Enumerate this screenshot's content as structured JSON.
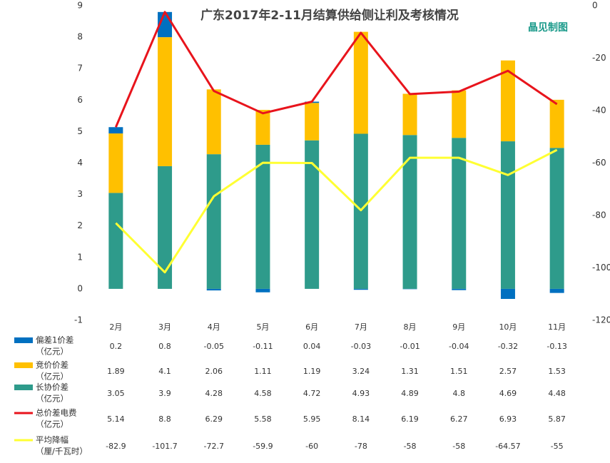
{
  "chart_data": {
    "type": "bar-line",
    "title": "广东2017年2-11月结算供给侧让利及考核情况",
    "annotation": "晶见制图",
    "categories": [
      "2月",
      "3月",
      "4月",
      "5月",
      "6月",
      "7月",
      "8月",
      "9月",
      "10月",
      "11月"
    ],
    "ylim": [
      -1,
      9
    ],
    "yticks": [
      -1,
      0,
      1,
      2,
      3,
      4,
      5,
      6,
      7,
      8,
      9
    ],
    "y2lim": [
      -120,
      0
    ],
    "y2ticks": [
      -120,
      -100,
      -80,
      -60,
      -40,
      -20,
      0
    ],
    "series": [
      {
        "name": "偏差1价差",
        "unit": "（亿元）",
        "kind": "bar",
        "color": "#0070c0",
        "values": [
          0.2,
          0.8,
          -0.05,
          -0.11,
          0.04,
          -0.03,
          -0.01,
          -0.04,
          -0.32,
          -0.13
        ]
      },
      {
        "name": "竞价价差",
        "unit": "（亿元）",
        "kind": "bar",
        "color": "#ffc000",
        "values": [
          1.89,
          4.1,
          2.06,
          1.11,
          1.19,
          3.24,
          1.31,
          1.51,
          2.57,
          1.53
        ]
      },
      {
        "name": "长协价差",
        "unit": "（亿元）",
        "kind": "bar",
        "color": "#2e9b8b",
        "values": [
          3.05,
          3.9,
          4.28,
          4.58,
          4.72,
          4.93,
          4.89,
          4.8,
          4.69,
          4.48
        ]
      },
      {
        "name": "总价差电费",
        "unit": "（亿元）",
        "kind": "line",
        "color": "#e8141c",
        "values": [
          5.14,
          8.8,
          6.29,
          5.58,
          5.95,
          8.14,
          6.19,
          6.27,
          6.93,
          5.87
        ]
      },
      {
        "name": "平均降幅",
        "unit": "（厘/千瓦时）",
        "kind": "line",
        "axis": "y2",
        "color": "#ffff33",
        "values": [
          -82.9,
          -101.7,
          -72.7,
          -59.9,
          -60,
          -78,
          -58,
          -58,
          -64.57,
          -55
        ]
      }
    ]
  }
}
